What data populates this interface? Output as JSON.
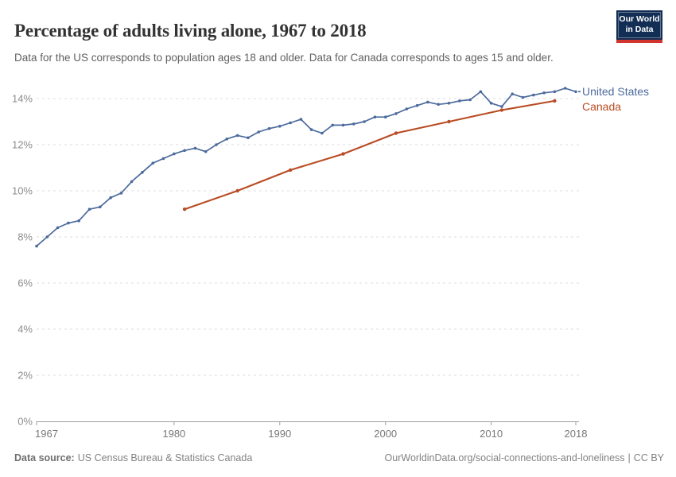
{
  "header": {
    "title": "Percentage of adults living alone, 1967 to 2018",
    "subtitle": "Data for the US corresponds to population ages 18 and older. Data for Canada corresponds to ages 15 and older.",
    "logo": {
      "line1": "Our World",
      "line2": "in Data"
    }
  },
  "chart_data": {
    "type": "line",
    "title": "Percentage of adults living alone, 1967 to 2018",
    "xlabel": "",
    "ylabel": "",
    "xlim": [
      1967,
      2018
    ],
    "ylim": [
      0,
      15
    ],
    "x_ticks": [
      1967,
      1980,
      1990,
      2000,
      2010,
      2018
    ],
    "y_ticks": [
      "0%",
      "2%",
      "4%",
      "6%",
      "8%",
      "10%",
      "12%",
      "14%"
    ],
    "grid": "horizontal-dashed",
    "legend_position": "end-of-line",
    "colors": {
      "axis": "#9E9E9E",
      "gridline": "#DEDEDE",
      "x_tick_label": "#787878",
      "y_tick_label": "#8C8C8C"
    },
    "series": [
      {
        "name": "United States",
        "color": "#4C6A9C",
        "x": [
          1967,
          1968,
          1969,
          1970,
          1971,
          1972,
          1973,
          1974,
          1975,
          1976,
          1977,
          1978,
          1979,
          1980,
          1981,
          1982,
          1983,
          1984,
          1985,
          1986,
          1987,
          1988,
          1989,
          1990,
          1991,
          1992,
          1993,
          1994,
          1995,
          1996,
          1997,
          1998,
          1999,
          2000,
          2001,
          2002,
          2003,
          2004,
          2005,
          2006,
          2007,
          2008,
          2009,
          2010,
          2011,
          2012,
          2013,
          2014,
          2015,
          2016,
          2017,
          2018
        ],
        "values": [
          7.6,
          8.0,
          8.4,
          8.6,
          8.7,
          9.2,
          9.3,
          9.7,
          9.9,
          10.4,
          10.8,
          11.2,
          11.4,
          11.6,
          11.75,
          11.85,
          11.7,
          12.0,
          12.25,
          12.4,
          12.3,
          12.55,
          12.7,
          12.8,
          12.95,
          13.1,
          12.65,
          12.5,
          12.85,
          12.85,
          12.9,
          13.0,
          13.2,
          13.2,
          13.35,
          13.55,
          13.7,
          13.85,
          13.75,
          13.8,
          13.9,
          13.95,
          14.3,
          13.8,
          13.65,
          14.2,
          14.05,
          14.15,
          14.25,
          14.3,
          14.45,
          14.3
        ]
      },
      {
        "name": "Canada",
        "color": "#B94B23",
        "x": [
          1981,
          1986,
          1991,
          1996,
          2001,
          2006,
          2011,
          2016
        ],
        "values": [
          9.2,
          10.0,
          10.9,
          11.6,
          12.5,
          13.0,
          13.5,
          13.9
        ]
      }
    ]
  },
  "footer": {
    "source_label": "Data source:",
    "source_value": "US Census Bureau & Statistics Canada",
    "link": "OurWorldinData.org/social-connections-and-loneliness",
    "separator": "|",
    "license": "CC BY"
  }
}
